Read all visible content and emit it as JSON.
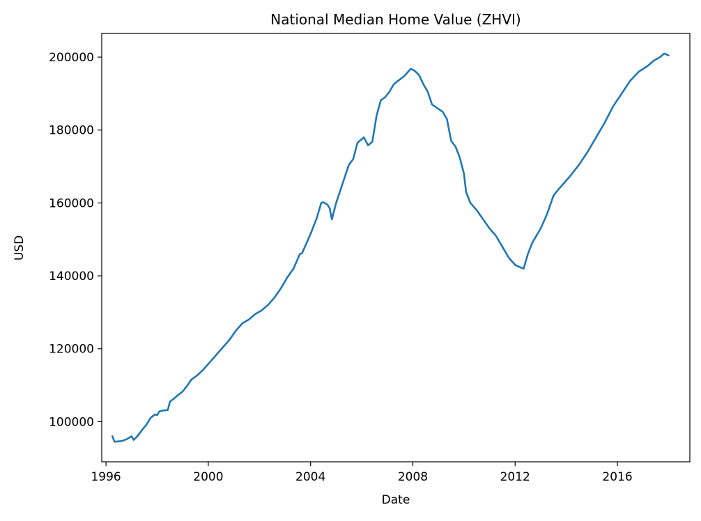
{
  "chart_data": {
    "type": "line",
    "title": "National Median Home Value (ZHVI)",
    "xlabel": "Date",
    "ylabel": "USD",
    "x_ticks": [
      "1996",
      "2000",
      "2004",
      "2008",
      "2012",
      "2016"
    ],
    "y_ticks": [
      "100000",
      "120000",
      "140000",
      "160000",
      "180000",
      "200000"
    ],
    "xlim": [
      "1995-11",
      "2018-11"
    ],
    "ylim": [
      89000,
      206500
    ],
    "grid": false,
    "line_color": "#1f77b4",
    "series": [
      {
        "x": [
          "1996-04",
          "1996-05",
          "1996-07",
          "1996-09",
          "1996-11",
          "1997-01",
          "1997-02",
          "1997-04",
          "1997-06",
          "1997-08",
          "1997-10",
          "1997-12",
          "1998-01",
          "1998-02",
          "1998-04",
          "1998-06",
          "1998-07",
          "1998-09",
          "1998-11",
          "1999-01",
          "1999-03",
          "1999-05",
          "1999-08",
          "1999-11",
          "2000-02",
          "2000-05",
          "2000-08",
          "2000-11",
          "2001-02",
          "2001-05",
          "2001-08",
          "2001-11",
          "2002-02",
          "2002-05",
          "2002-08",
          "2002-11",
          "2003-02",
          "2003-05",
          "2003-08",
          "2003-09",
          "2003-10",
          "2004-01",
          "2004-04",
          "2004-06",
          "2004-07",
          "2004-09",
          "2004-10",
          "2004-11",
          "2005-01",
          "2005-03",
          "2005-05",
          "2005-07",
          "2005-09",
          "2005-11",
          "2006-02",
          "2006-04",
          "2006-06",
          "2006-08",
          "2006-10",
          "2006-12",
          "2007-02",
          "2007-04",
          "2007-06",
          "2007-09",
          "2007-12",
          "2008-02",
          "2008-04",
          "2008-06",
          "2008-08",
          "2008-10",
          "2009-01",
          "2009-03",
          "2009-05",
          "2009-07",
          "2009-09",
          "2009-11",
          "2010-01",
          "2010-02",
          "2010-04",
          "2010-07",
          "2010-10",
          "2011-01",
          "2011-04",
          "2011-07",
          "2011-10",
          "2012-01",
          "2012-04",
          "2012-05",
          "2012-07",
          "2012-09",
          "2013-01",
          "2013-04",
          "2013-07",
          "2013-09",
          "2013-12",
          "2014-03",
          "2014-07",
          "2014-11",
          "2015-03",
          "2015-07",
          "2015-11",
          "2016-03",
          "2016-07",
          "2016-11",
          "2017-03",
          "2017-06",
          "2017-09",
          "2017-11",
          "2018-01"
        ],
        "y": [
          96000,
          94500,
          94600,
          94800,
          95300,
          96000,
          95000,
          96200,
          97800,
          99200,
          101100,
          102000,
          101800,
          102800,
          103100,
          103200,
          105500,
          106400,
          107400,
          108300,
          109800,
          111500,
          112800,
          114500,
          116500,
          118500,
          120500,
          122500,
          125000,
          127000,
          128000,
          129500,
          130500,
          132000,
          134000,
          136500,
          139500,
          142000,
          146000,
          146200,
          147500,
          151500,
          156000,
          160000,
          160200,
          159500,
          158500,
          155500,
          160000,
          163500,
          167000,
          170500,
          172000,
          176500,
          178000,
          175800,
          176800,
          184000,
          188200,
          189000,
          190500,
          192500,
          193500,
          194800,
          196800,
          196200,
          195000,
          192500,
          190500,
          187000,
          185800,
          185000,
          183000,
          177000,
          175500,
          172500,
          168000,
          163000,
          160000,
          158000,
          155500,
          153000,
          151000,
          148000,
          145000,
          143000,
          142200,
          142000,
          146000,
          149000,
          153000,
          157000,
          162000,
          163500,
          165500,
          167500,
          170500,
          174000,
          178000,
          182000,
          186500,
          190000,
          193500,
          196000,
          197500,
          199000,
          200000,
          201000,
          200500
        ]
      }
    ]
  }
}
